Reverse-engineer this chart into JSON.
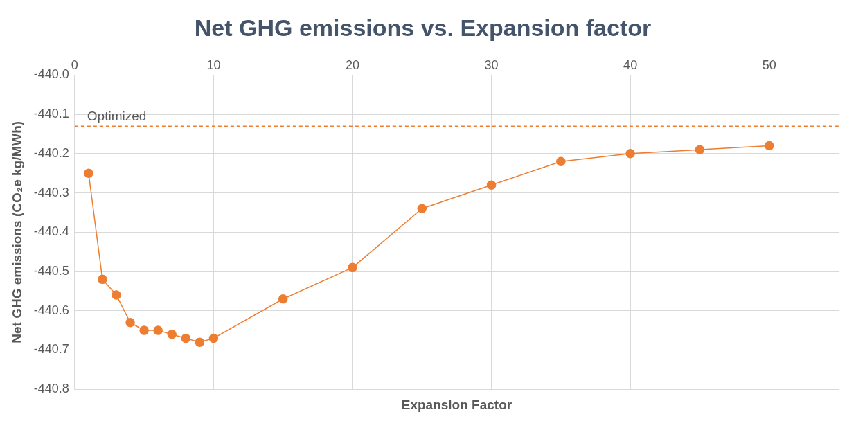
{
  "chart_data": {
    "type": "line",
    "title": "Net GHG emissions vs. Expansion factor",
    "xlabel": "Expansion Factor",
    "ylabel": "Net GHG emissions (CO₂e kg/MWh)",
    "x": [
      1,
      2,
      3,
      4,
      5,
      6,
      7,
      8,
      9,
      10,
      15,
      20,
      25,
      30,
      35,
      40,
      45,
      50
    ],
    "series": [
      {
        "color": "#ed7d31",
        "values": [
          -440.25,
          -440.52,
          -440.56,
          -440.63,
          -440.65,
          -440.65,
          -440.66,
          -440.67,
          -440.68,
          -440.67,
          -440.57,
          -440.49,
          -440.34,
          -440.28,
          -440.22,
          -440.2,
          -440.19,
          -440.18
        ]
      }
    ],
    "xlim": [
      0,
      55
    ],
    "xticks": [
      0,
      10,
      20,
      30,
      40,
      50
    ],
    "ylim": [
      -440.8,
      -440.0
    ],
    "yticks": [
      {
        "value": -440.8,
        "label": "-440.8"
      },
      {
        "value": -440.7,
        "label": "-440.7"
      },
      {
        "value": -440.6,
        "label": "-440.6"
      },
      {
        "value": -440.5,
        "label": "-440.5"
      },
      {
        "value": -440.4,
        "label": "-440.4"
      },
      {
        "value": -440.3,
        "label": "-440.3"
      },
      {
        "value": -440.2,
        "label": "-440.2"
      },
      {
        "value": -440.1,
        "label": "-440.1"
      },
      {
        "value": -440.0,
        "label": "-440.0"
      }
    ],
    "ref_lines": [
      {
        "axis": "y",
        "value": -440.13,
        "label": "Optimized",
        "color": "#ed7d31",
        "line_style": "dashed"
      }
    ],
    "grid": true,
    "legend": false,
    "marker": "circle",
    "line_style": "solid"
  }
}
